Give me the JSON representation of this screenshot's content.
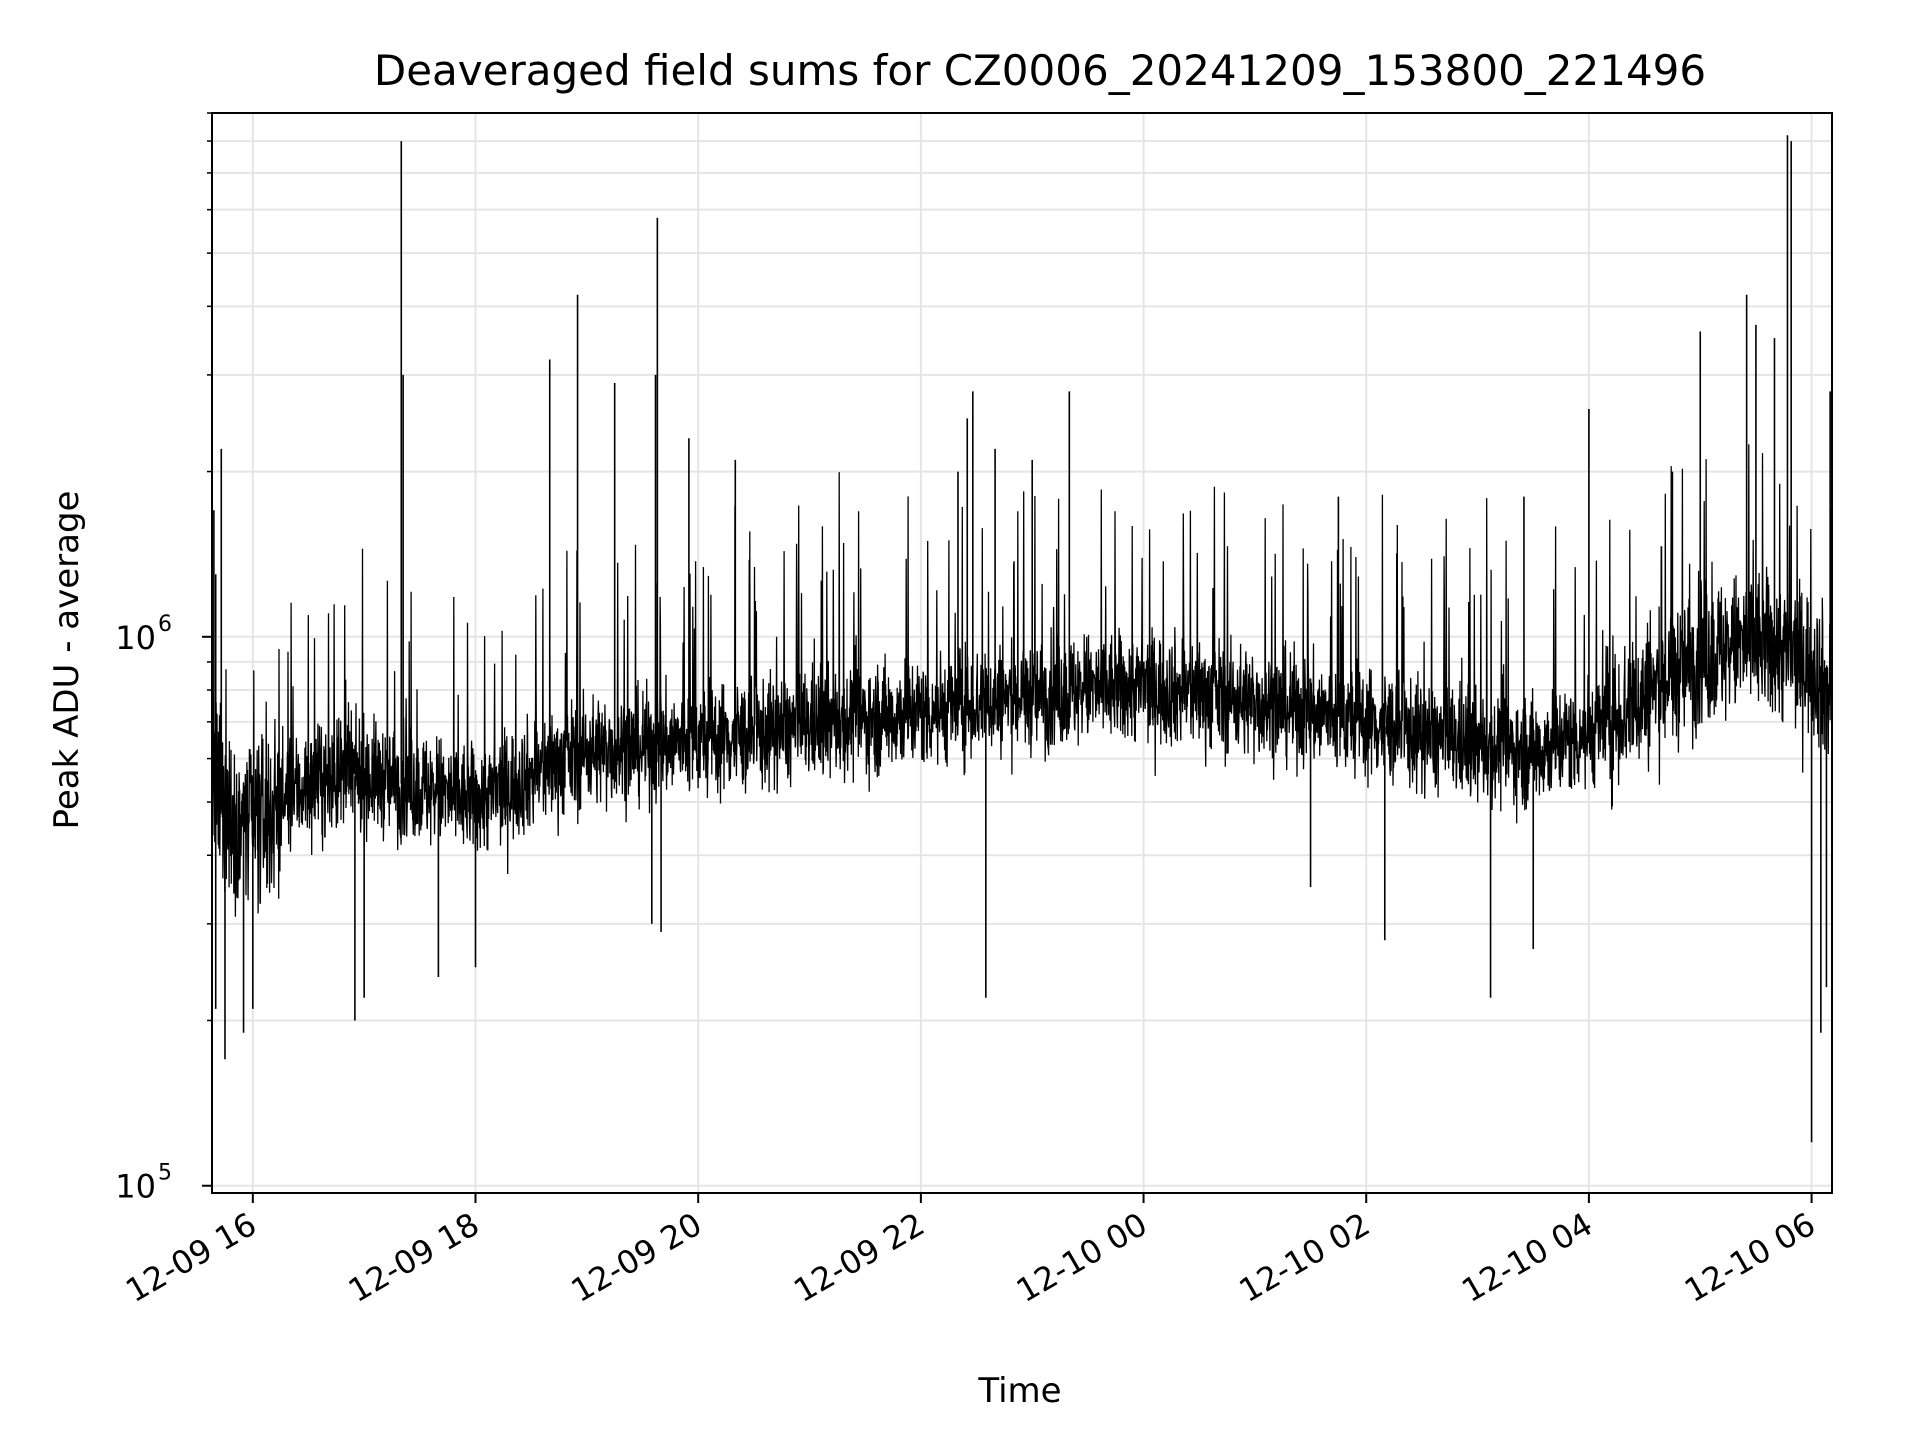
{
  "chart_data": {
    "type": "line",
    "title": "Deaveraged field sums for CZ0006_20241209_153800_221496",
    "xlabel": "Time",
    "ylabel": "Peak ADU - average",
    "x_axis": {
      "kind": "datetime",
      "range": [
        "2024-12-09 15:38",
        "2024-12-10 06:11"
      ],
      "ticks": [
        {
          "t": "2024-12-09 16:00",
          "label": "12-09 16"
        },
        {
          "t": "2024-12-09 18:00",
          "label": "12-09 18"
        },
        {
          "t": "2024-12-09 20:00",
          "label": "12-09 20"
        },
        {
          "t": "2024-12-09 22:00",
          "label": "12-09 22"
        },
        {
          "t": "2024-12-10 00:00",
          "label": "12-10 00"
        },
        {
          "t": "2024-12-10 02:00",
          "label": "12-10 02"
        },
        {
          "t": "2024-12-10 04:00",
          "label": "12-10 04"
        },
        {
          "t": "2024-12-10 06:00",
          "label": "12-10 06"
        }
      ]
    },
    "y_axis": {
      "scale": "log",
      "range": [
        97000,
        9000000
      ],
      "major_ticks": [
        {
          "value": 100000,
          "base": "10",
          "exp": "5"
        },
        {
          "value": 1000000,
          "base": "10",
          "exp": "6"
        }
      ]
    },
    "grid": true,
    "line_color": "#000000",
    "grid_color": "#e5e5e5",
    "series": [
      {
        "x": [
          "2024-12-09 15:38",
          "2024-12-09 15:45",
          "2024-12-09 16:00",
          "2024-12-09 16:15",
          "2024-12-09 16:30",
          "2024-12-09 17:00",
          "2024-12-09 17:30",
          "2024-12-09 18:00",
          "2024-12-09 18:30",
          "2024-12-09 19:00",
          "2024-12-09 19:30",
          "2024-12-09 20:00",
          "2024-12-09 20:30",
          "2024-12-09 21:00",
          "2024-12-09 21:30",
          "2024-12-09 22:00",
          "2024-12-09 22:30",
          "2024-12-09 23:00",
          "2024-12-09 23:30",
          "2024-12-10 00:00",
          "2024-12-10 00:30",
          "2024-12-10 01:00",
          "2024-12-10 01:30",
          "2024-12-10 02:00",
          "2024-12-10 02:30",
          "2024-12-10 03:00",
          "2024-12-10 03:30",
          "2024-12-10 04:00",
          "2024-12-10 04:30",
          "2024-12-10 05:00",
          "2024-12-10 05:30",
          "2024-12-10 06:00",
          "2024-12-10 06:11"
        ],
        "y": [
          550000,
          480000,
          450000,
          500000,
          540000,
          560000,
          530000,
          500000,
          560000,
          620000,
          630000,
          650000,
          660000,
          690000,
          710000,
          730000,
          760000,
          780000,
          800000,
          810000,
          790000,
          760000,
          730000,
          700000,
          660000,
          630000,
          620000,
          670000,
          780000,
          920000,
          980000,
          900000,
          780000
        ]
      }
    ],
    "spikes": [
      {
        "x": "2024-12-09 15:39",
        "y": 1700000
      },
      {
        "x": "2024-12-09 15:40",
        "y": 1300000
      },
      {
        "x": "2024-12-09 15:43",
        "y": 2200000
      },
      {
        "x": "2024-12-09 17:20",
        "y": 8000000
      },
      {
        "x": "2024-12-09 17:21",
        "y": 3000000
      },
      {
        "x": "2024-12-09 18:40",
        "y": 3200000
      },
      {
        "x": "2024-12-09 18:55",
        "y": 4200000
      },
      {
        "x": "2024-12-09 19:15",
        "y": 2900000
      },
      {
        "x": "2024-12-09 19:37",
        "y": 3000000
      },
      {
        "x": "2024-12-09 19:38",
        "y": 5800000
      },
      {
        "x": "2024-12-09 19:55",
        "y": 2300000
      },
      {
        "x": "2024-12-09 20:20",
        "y": 2100000
      },
      {
        "x": "2024-12-09 22:20",
        "y": 2000000
      },
      {
        "x": "2024-12-09 22:25",
        "y": 2500000
      },
      {
        "x": "2024-12-09 22:28",
        "y": 2800000
      },
      {
        "x": "2024-12-09 22:40",
        "y": 2200000
      },
      {
        "x": "2024-12-09 23:00",
        "y": 2100000
      },
      {
        "x": "2024-12-09 23:20",
        "y": 2800000
      },
      {
        "x": "2024-12-10 01:45",
        "y": 1800000
      },
      {
        "x": "2024-12-10 03:25",
        "y": 1800000
      },
      {
        "x": "2024-12-10 04:00",
        "y": 2600000
      },
      {
        "x": "2024-12-10 04:45",
        "y": 2000000
      },
      {
        "x": "2024-12-10 05:00",
        "y": 3600000
      },
      {
        "x": "2024-12-10 05:25",
        "y": 4200000
      },
      {
        "x": "2024-12-10 05:30",
        "y": 3700000
      },
      {
        "x": "2024-12-10 05:40",
        "y": 3500000
      },
      {
        "x": "2024-12-10 05:47",
        "y": 8200000
      },
      {
        "x": "2024-12-10 05:49",
        "y": 8000000
      },
      {
        "x": "2024-12-10 06:10",
        "y": 2800000
      }
    ],
    "dips": [
      {
        "x": "2024-12-09 15:40",
        "y": 210000
      },
      {
        "x": "2024-12-09 15:45",
        "y": 170000
      },
      {
        "x": "2024-12-09 15:55",
        "y": 190000
      },
      {
        "x": "2024-12-09 16:00",
        "y": 210000
      },
      {
        "x": "2024-12-09 16:55",
        "y": 200000
      },
      {
        "x": "2024-12-09 17:00",
        "y": 220000
      },
      {
        "x": "2024-12-09 17:40",
        "y": 240000
      },
      {
        "x": "2024-12-09 18:00",
        "y": 250000
      },
      {
        "x": "2024-12-09 19:35",
        "y": 300000
      },
      {
        "x": "2024-12-09 19:40",
        "y": 290000
      },
      {
        "x": "2024-12-09 22:35",
        "y": 220000
      },
      {
        "x": "2024-12-10 01:30",
        "y": 350000
      },
      {
        "x": "2024-12-10 02:10",
        "y": 280000
      },
      {
        "x": "2024-12-10 03:07",
        "y": 220000
      },
      {
        "x": "2024-12-10 03:30",
        "y": 270000
      },
      {
        "x": "2024-12-10 06:00",
        "y": 120000
      },
      {
        "x": "2024-12-10 06:05",
        "y": 190000
      },
      {
        "x": "2024-12-10 06:08",
        "y": 230000
      }
    ]
  }
}
